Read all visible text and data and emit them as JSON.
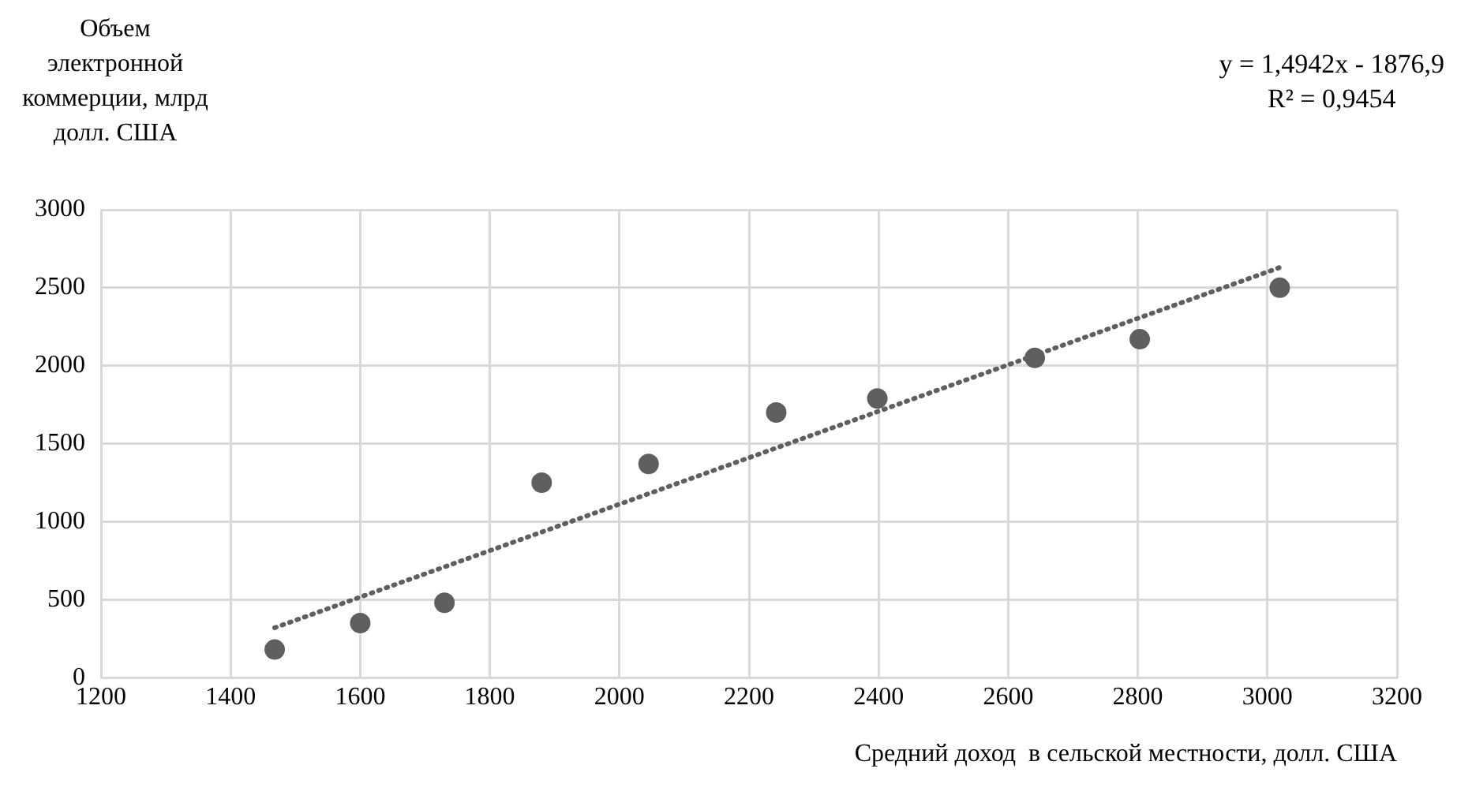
{
  "chart_data": {
    "type": "scatter",
    "xlabel": "Средний доход  в сельской местности, долл. США",
    "ylabel": "Объем электронной коммерции, млрд долл. США",
    "annotations": [
      "y = 1,4942x - 1876,9",
      "R² = 0,9454"
    ],
    "xlim": [
      1200,
      3200
    ],
    "xticks": [
      1200,
      1400,
      1600,
      1800,
      2000,
      2200,
      2400,
      2600,
      2800,
      3000,
      3200
    ],
    "ylim": [
      0,
      3000
    ],
    "yticks": [
      0,
      500,
      1000,
      1500,
      2000,
      2500,
      3000
    ],
    "grid": true,
    "legend": false,
    "marker": "circle",
    "series": [
      {
        "type": "scatter",
        "color": "#5f5f5f",
        "x": [
          1468,
          1600,
          1730,
          1880,
          2045,
          2242,
          2398,
          2641,
          2803,
          3019
        ],
        "values": [
          180,
          350,
          480,
          1250,
          1370,
          1700,
          1790,
          2050,
          2170,
          2500
        ]
      },
      {
        "type": "line",
        "color": "#5f5f5f",
        "line_style": "dotted",
        "marker": "none",
        "x": [
          1468,
          3019
        ],
        "values": [
          320,
          2630
        ]
      }
    ]
  }
}
